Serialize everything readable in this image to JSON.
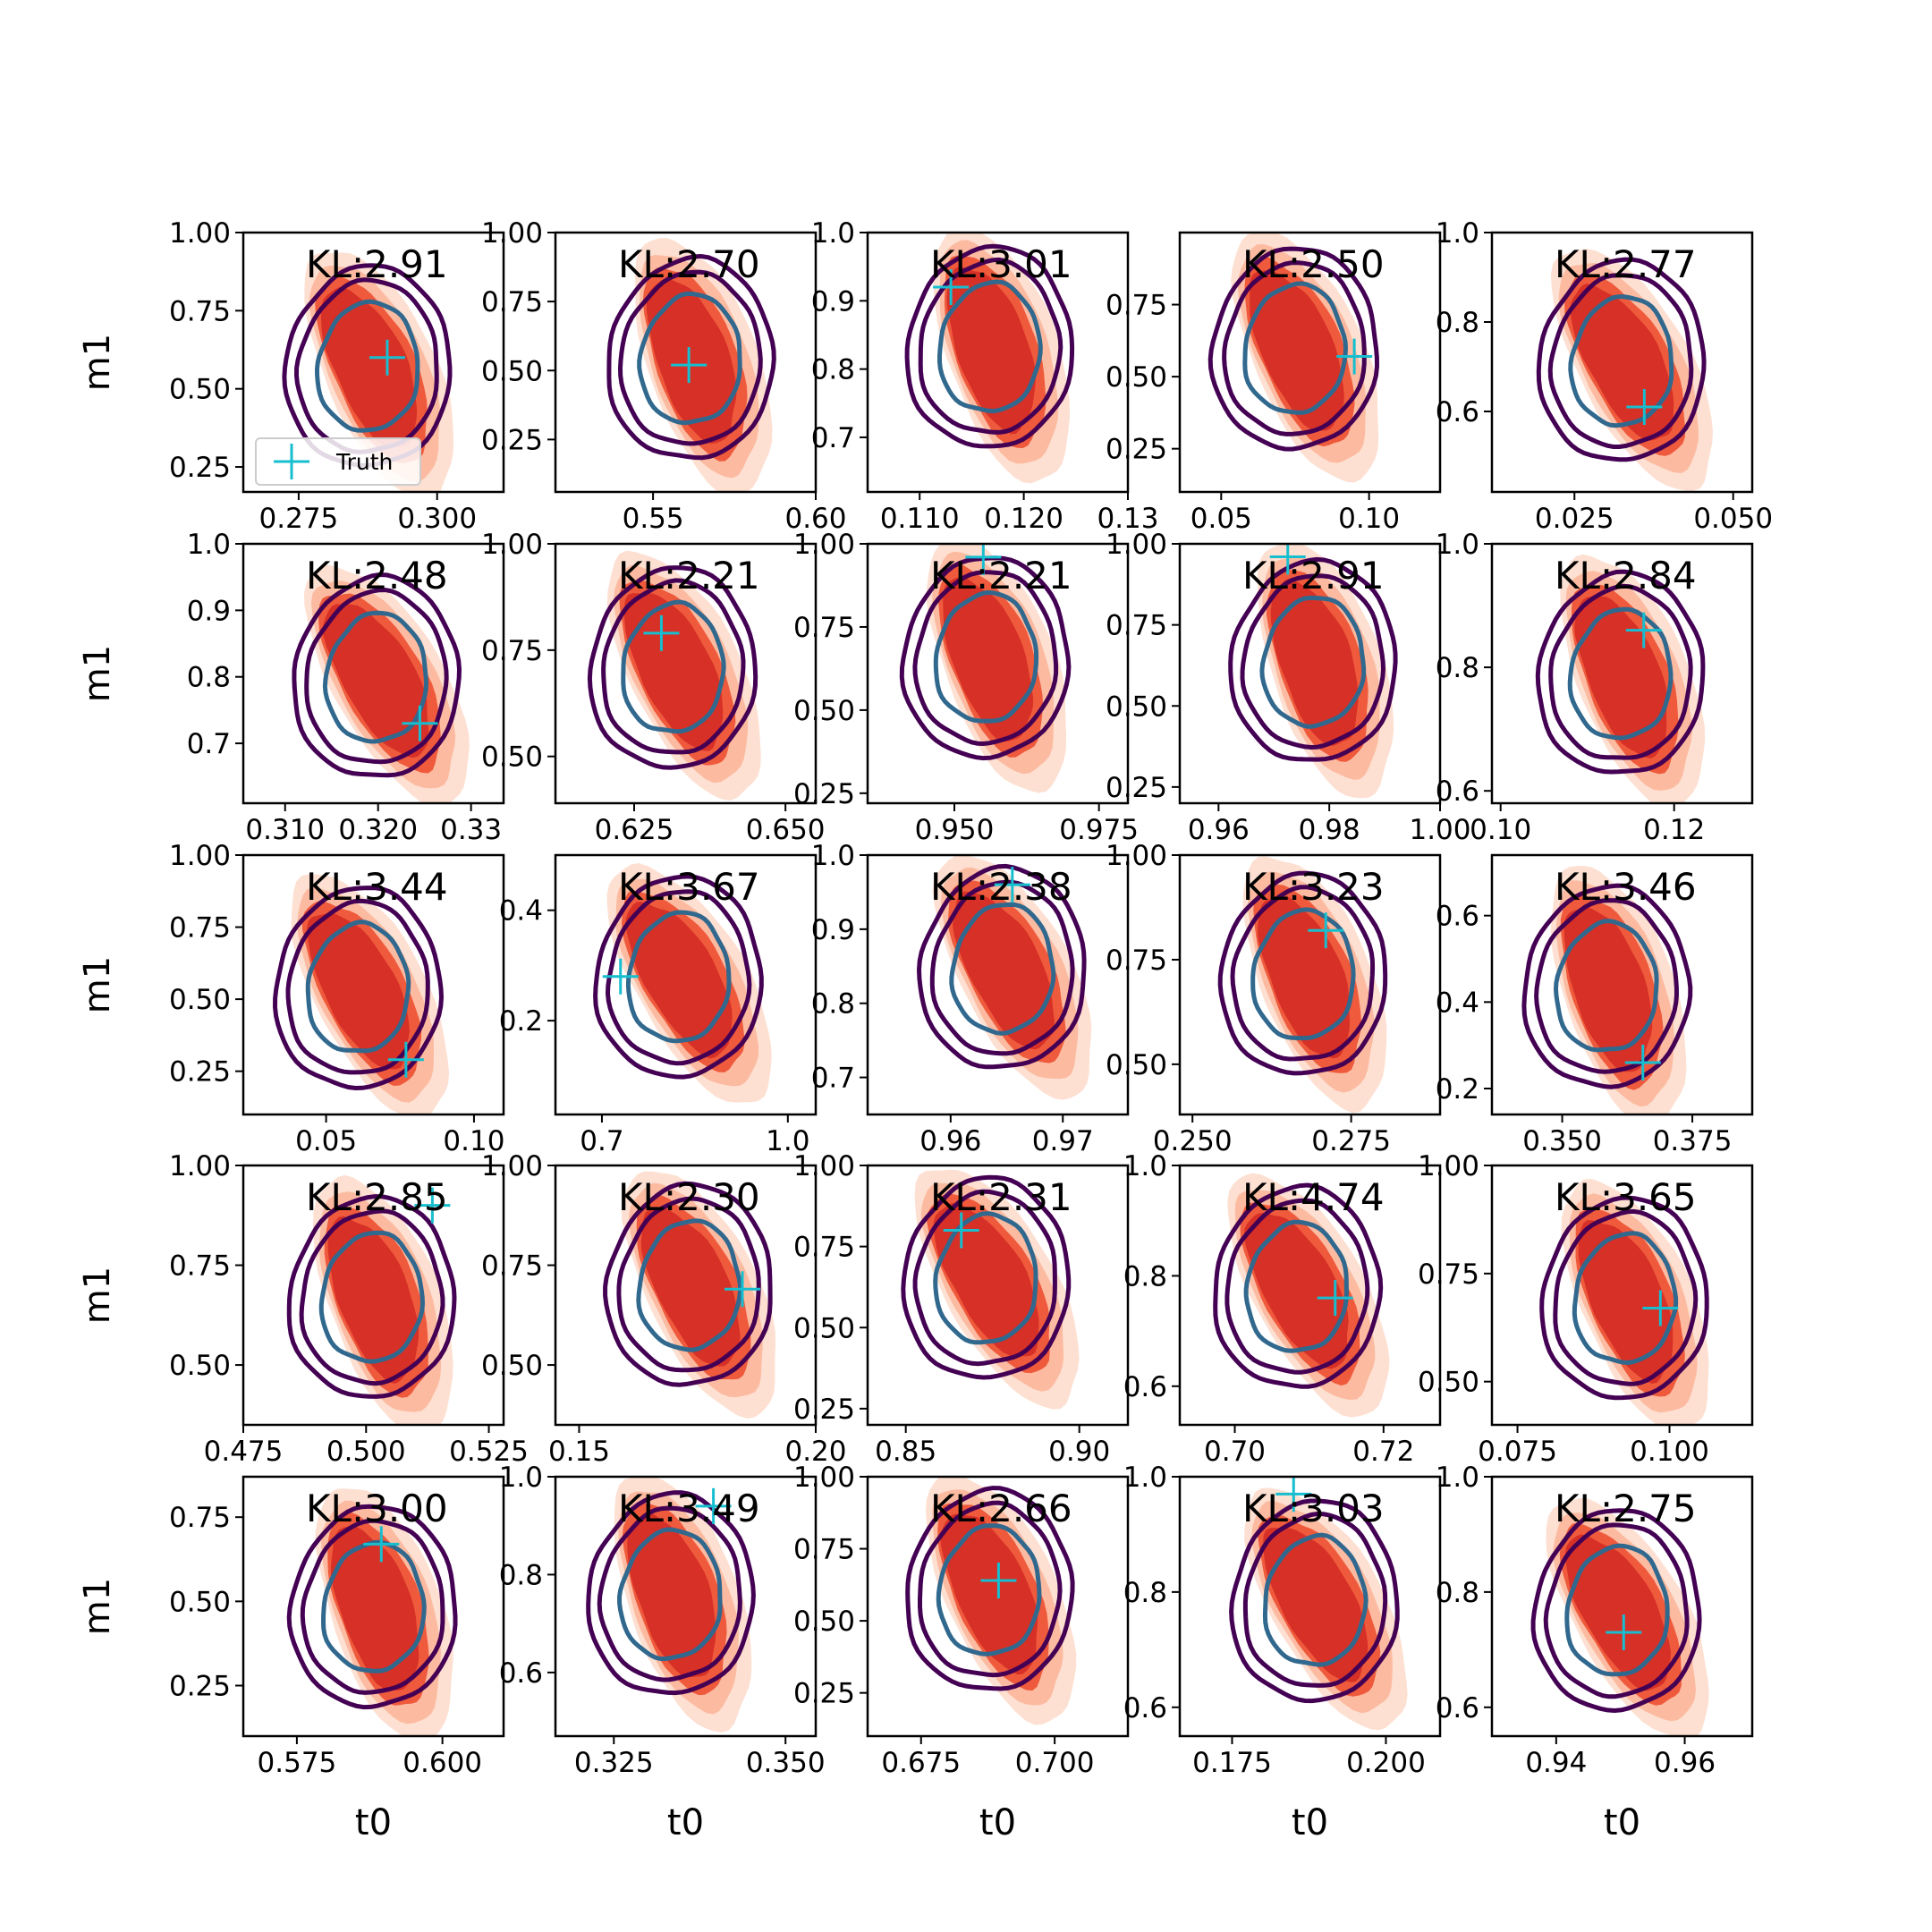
{
  "chart_data": {
    "type": "contour-grid",
    "rows": 5,
    "cols": 5,
    "xlabel": "t0",
    "ylabel": "m1",
    "legend": {
      "label": "Truth",
      "placement": "lower-left of first panel"
    },
    "colors": {
      "true_density": "#d73027",
      "true_density_light": "#fcbba1",
      "approx_outer": "#440154",
      "approx_inner": "#31688e",
      "truth_marker": "#17becf"
    },
    "panels": [
      {
        "kl": "KL:2.91",
        "truth": [
          0.291,
          0.6
        ],
        "xlim": [
          0.265,
          0.312
        ],
        "ylim": [
          0.17,
          1.0
        ],
        "xticks": [
          "0.275",
          "0.300"
        ],
        "yticks": [
          "1.00",
          "0.75",
          "0.50",
          "0.25"
        ]
      },
      {
        "kl": "KL:2.70",
        "truth": [
          0.561,
          0.52
        ],
        "xlim": [
          0.52,
          0.6
        ],
        "ylim": [
          0.06,
          1.0
        ],
        "xticks": [
          "0.55",
          "0.60"
        ],
        "yticks": [
          "1.00",
          "0.75",
          "0.50",
          "0.25"
        ]
      },
      {
        "kl": "KL:3.01",
        "truth": [
          0.113,
          0.92
        ],
        "xlim": [
          0.105,
          0.13
        ],
        "ylim": [
          0.62,
          1.0
        ],
        "xticks": [
          "0.110",
          "0.120",
          "0.13"
        ],
        "yticks": [
          "1.0",
          "0.9",
          "0.8",
          "0.7"
        ]
      },
      {
        "kl": "KL:2.50",
        "truth": [
          0.095,
          0.57
        ],
        "xlim": [
          0.036,
          0.124
        ],
        "ylim": [
          0.1,
          1.0
        ],
        "xticks": [
          "0.05",
          "0.10"
        ],
        "yticks": [
          "0.75",
          "0.50",
          "0.25"
        ]
      },
      {
        "kl": "KL:2.77",
        "truth": [
          0.036,
          0.61
        ],
        "xlim": [
          0.012,
          0.053
        ],
        "ylim": [
          0.42,
          1.0
        ],
        "xticks": [
          "0.025",
          "0.050"
        ],
        "yticks": [
          "1.0",
          "0.8",
          "0.6"
        ]
      },
      {
        "kl": "KL:2.48",
        "truth": [
          0.3245,
          0.73
        ],
        "xlim": [
          0.3055,
          0.3335
        ],
        "ylim": [
          0.61,
          1.0
        ],
        "xticks": [
          "0.310",
          "0.320",
          "0.33"
        ],
        "yticks": [
          "1.0",
          "0.9",
          "0.8",
          "0.7"
        ]
      },
      {
        "kl": "KL:2.21",
        "truth": [
          0.6295,
          0.79
        ],
        "xlim": [
          0.612,
          0.655
        ],
        "ylim": [
          0.39,
          1.0
        ],
        "xticks": [
          "0.625",
          "0.650"
        ],
        "yticks": [
          "1.00",
          "0.75",
          "0.50"
        ]
      },
      {
        "kl": "KL:2.21",
        "truth": [
          0.955,
          0.96
        ],
        "xlim": [
          0.935,
          0.98
        ],
        "ylim": [
          0.22,
          1.0
        ],
        "xticks": [
          "0.950",
          "0.975"
        ],
        "yticks": [
          "1.00",
          "0.75",
          "0.50",
          "0.25"
        ]
      },
      {
        "kl": "KL:2.91",
        "truth": [
          0.9725,
          0.96
        ],
        "xlim": [
          0.953,
          1.0
        ],
        "ylim": [
          0.2,
          1.0
        ],
        "xticks": [
          "0.96",
          "0.98",
          "1.00"
        ],
        "yticks": [
          "1.00",
          "0.75",
          "0.50",
          "0.25"
        ]
      },
      {
        "kl": "KL:2.84",
        "truth": [
          0.1165,
          0.86
        ],
        "xlim": [
          0.099,
          0.129
        ],
        "ylim": [
          0.58,
          1.0
        ],
        "xticks": [
          "0.10",
          "0.12"
        ],
        "yticks": [
          "1.0",
          "0.8",
          "0.6"
        ]
      },
      {
        "kl": "KL:3.44",
        "truth": [
          0.077,
          0.29
        ],
        "xlim": [
          0.022,
          0.11
        ],
        "ylim": [
          0.1,
          1.0
        ],
        "xticks": [
          "0.05",
          "0.10"
        ],
        "yticks": [
          "1.00",
          "0.75",
          "0.50",
          "0.25"
        ]
      },
      {
        "kl": "KL:3.67",
        "truth": [
          0.73,
          0.28
        ],
        "xlim": [
          0.625,
          1.045
        ],
        "ylim": [
          0.03,
          0.5
        ],
        "xticks": [
          "0.7",
          "1.0"
        ],
        "yticks": [
          "0.4",
          "0.2"
        ]
      },
      {
        "kl": "KL:2.38",
        "truth": [
          0.9655,
          0.96
        ],
        "xlim": [
          0.9526,
          0.9758
        ],
        "ylim": [
          0.65,
          1.0
        ],
        "xticks": [
          "0.96",
          "0.97"
        ],
        "yticks": [
          "1.0",
          "0.9",
          "0.8",
          "0.7"
        ]
      },
      {
        "kl": "KL:3.23",
        "truth": [
          0.271,
          0.82
        ],
        "xlim": [
          0.248,
          0.289
        ],
        "ylim": [
          0.38,
          1.0
        ],
        "xticks": [
          "0.250",
          "0.275"
        ],
        "yticks": [
          "1.00",
          "0.75",
          "0.50"
        ]
      },
      {
        "kl": "KL:3.46",
        "truth": [
          0.3655,
          0.26
        ],
        "xlim": [
          0.3365,
          0.3865
        ],
        "ylim": [
          0.14,
          0.74
        ],
        "xticks": [
          "0.350",
          "0.375"
        ],
        "yticks": [
          "0.6",
          "0.4",
          "0.2"
        ]
      },
      {
        "kl": "KL:2.85",
        "truth": [
          0.5135,
          0.9
        ],
        "xlim": [
          0.475,
          0.528
        ],
        "ylim": [
          0.35,
          1.0
        ],
        "xticks": [
          "0.475",
          "0.500",
          "0.525"
        ],
        "yticks": [
          "1.00",
          "0.75",
          "0.50"
        ]
      },
      {
        "kl": "KL:2.30",
        "truth": [
          0.1845,
          0.69
        ],
        "xlim": [
          0.145,
          0.2
        ],
        "ylim": [
          0.35,
          1.0
        ],
        "xticks": [
          "0.15",
          "0.20"
        ],
        "yticks": [
          "1.00",
          "0.75",
          "0.50"
        ]
      },
      {
        "kl": "KL:2.31",
        "truth": [
          0.866,
          0.8
        ],
        "xlim": [
          0.839,
          0.914
        ],
        "ylim": [
          0.2,
          1.0
        ],
        "xticks": [
          "0.85",
          "0.90"
        ],
        "yticks": [
          "1.00",
          "0.75",
          "0.50",
          "0.25"
        ]
      },
      {
        "kl": "KL:4.74",
        "truth": [
          0.7135,
          0.76
        ],
        "xlim": [
          0.6926,
          0.7276
        ],
        "ylim": [
          0.53,
          1.0
        ],
        "xticks": [
          "0.70",
          "0.72"
        ],
        "yticks": [
          "1.0",
          "0.8",
          "0.6"
        ]
      },
      {
        "kl": "KL:3.65",
        "truth": [
          0.0985,
          0.67
        ],
        "xlim": [
          0.0708,
          0.1136
        ],
        "ylim": [
          0.4,
          1.0
        ],
        "xticks": [
          "0.075",
          "0.100"
        ],
        "yticks": [
          "1.00",
          "0.75",
          "0.50"
        ]
      },
      {
        "kl": "KL:3.00",
        "truth": [
          0.5895,
          0.67
        ],
        "xlim": [
          0.5658,
          0.6105
        ],
        "ylim": [
          0.1,
          0.87
        ],
        "xticks": [
          "0.575",
          "0.600"
        ],
        "yticks": [
          "0.75",
          "0.50",
          "0.25"
        ]
      },
      {
        "kl": "KL:3.49",
        "truth": [
          0.3395,
          0.94
        ],
        "xlim": [
          0.3165,
          0.3544
        ],
        "ylim": [
          0.47,
          1.0
        ],
        "xticks": [
          "0.325",
          "0.350"
        ],
        "yticks": [
          "1.0",
          "0.8",
          "0.6"
        ]
      },
      {
        "kl": "KL:2.66",
        "truth": [
          0.6895,
          0.64
        ],
        "xlim": [
          0.665,
          0.7137
        ],
        "ylim": [
          0.1,
          1.0
        ],
        "xticks": [
          "0.675",
          "0.700"
        ],
        "yticks": [
          "1.00",
          "0.75",
          "0.50",
          "0.25"
        ]
      },
      {
        "kl": "KL:3.03",
        "truth": [
          0.185,
          0.97
        ],
        "xlim": [
          0.1665,
          0.2088
        ],
        "ylim": [
          0.55,
          1.0
        ],
        "xticks": [
          "0.175",
          "0.200"
        ],
        "yticks": [
          "1.0",
          "0.8",
          "0.6"
        ]
      },
      {
        "kl": "KL:2.75",
        "truth": [
          0.9505,
          0.73
        ],
        "xlim": [
          0.93,
          0.9705
        ],
        "ylim": [
          0.55,
          1.0
        ],
        "xticks": [
          "0.94",
          "0.96"
        ],
        "yticks": [
          "1.0",
          "0.8",
          "0.6"
        ]
      }
    ]
  }
}
